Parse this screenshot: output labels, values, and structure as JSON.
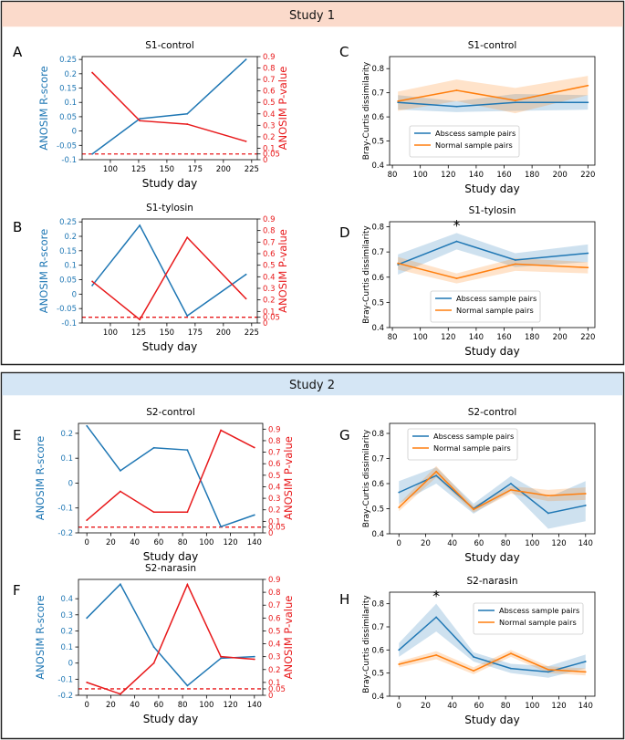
{
  "study1_header": "Study 1",
  "study2_header": "Study 2",
  "colors": {
    "blue": "#1f77b4",
    "orange": "#ff7f0e",
    "red": "#e8191b",
    "header1": "#fbdacb",
    "header2": "#d5e6f5",
    "border": "#222222"
  },
  "chart_data": [
    {
      "id": "A",
      "letter": "A",
      "type": "line",
      "title": "S1-control",
      "xlabel": "Study day",
      "ylabel": "ANOSIM R-score",
      "y2label": "ANOSIM P-value",
      "xlim": [
        75,
        230
      ],
      "xticks": [
        100,
        125,
        150,
        175,
        200,
        225
      ],
      "ylim": [
        -0.1,
        0.26
      ],
      "yticks": [
        -0.1,
        -0.05,
        0,
        0.05,
        0.1,
        0.15,
        0.2,
        0.25
      ],
      "ytick_labels": [
        "-0.1",
        "-0.05",
        "0",
        "0.05",
        "0.1",
        "0.15",
        "0.2",
        "0.25"
      ],
      "y2lim": [
        0,
        0.9
      ],
      "y2ticks": [
        0,
        0.05,
        0.1,
        0.2,
        0.3,
        0.4,
        0.5,
        0.6,
        0.7,
        0.8,
        0.9
      ],
      "y2tick_labels": [
        "0",
        "0.05",
        "0.1",
        "0.2",
        "0.3",
        "0.4",
        "0.5",
        "0.6",
        "0.7",
        "0.8",
        "0.9"
      ],
      "x": [
        84,
        126,
        168,
        220
      ],
      "r_score": [
        -0.08,
        0.043,
        0.06,
        0.25
      ],
      "p_value": [
        0.76,
        0.34,
        0.31,
        0.16
      ],
      "p_threshold": 0.05
    },
    {
      "id": "B",
      "letter": "B",
      "type": "line",
      "title": "S1-tylosin",
      "xlabel": "Study day",
      "ylabel": "ANOSIM R-score",
      "y2label": "ANOSIM P-value",
      "xlim": [
        75,
        230
      ],
      "xticks": [
        100,
        125,
        150,
        175,
        200,
        225
      ],
      "ylim": [
        -0.1,
        0.26
      ],
      "yticks": [
        -0.1,
        -0.05,
        0,
        0.05,
        0.1,
        0.15,
        0.2,
        0.25
      ],
      "ytick_labels": [
        "-0.1",
        "-0.05",
        "0",
        "0.05",
        "0.1",
        "0.15",
        "0.2",
        "0.25"
      ],
      "y2lim": [
        0,
        0.9
      ],
      "y2ticks": [
        0,
        0.05,
        0.1,
        0.2,
        0.3,
        0.4,
        0.5,
        0.6,
        0.7,
        0.8,
        0.9
      ],
      "y2tick_labels": [
        "0",
        "0.05",
        "0.1",
        "0.2",
        "0.3",
        "0.4",
        "0.5",
        "0.6",
        "0.7",
        "0.8",
        "0.9"
      ],
      "x": [
        84,
        126,
        168,
        220
      ],
      "r_score": [
        0.03,
        0.238,
        -0.075,
        0.068
      ],
      "p_value": [
        0.36,
        0.03,
        0.74,
        0.21
      ],
      "p_threshold": 0.05
    },
    {
      "id": "C",
      "letter": "C",
      "type": "line",
      "title": "S1-control",
      "xlabel": "Study day",
      "ylabel": "Bray-Curtis dissimilarity",
      "xlim": [
        78,
        225
      ],
      "xticks": [
        80,
        100,
        120,
        140,
        160,
        180,
        200,
        220
      ],
      "ylim": [
        0.4,
        0.85
      ],
      "yticks": [
        0.4,
        0.5,
        0.6,
        0.7,
        0.8
      ],
      "ytick_labels": [
        "0.4",
        "0.5",
        "0.6",
        "0.7",
        "0.8"
      ],
      "x": [
        84,
        126,
        168,
        220
      ],
      "series": [
        {
          "name": "Abscess sample pairs",
          "values": [
            0.66,
            0.643,
            0.66,
            0.66
          ],
          "lower": [
            0.63,
            0.62,
            0.625,
            0.63
          ],
          "upper": [
            0.69,
            0.665,
            0.695,
            0.69
          ]
        },
        {
          "name": "Normal sample pairs",
          "values": [
            0.665,
            0.71,
            0.668,
            0.73
          ],
          "lower": [
            0.625,
            0.665,
            0.615,
            0.69
          ],
          "upper": [
            0.705,
            0.755,
            0.72,
            0.77
          ]
        }
      ],
      "legend_loc": "lower-left",
      "star_x": null
    },
    {
      "id": "D",
      "letter": "D",
      "type": "line",
      "title": "S1-tylosin",
      "xlabel": "Study day",
      "ylabel": "Bray-Curtis dissimilarity",
      "xlim": [
        78,
        225
      ],
      "xticks": [
        80,
        100,
        120,
        140,
        160,
        180,
        200,
        220
      ],
      "ylim": [
        0.4,
        0.82
      ],
      "yticks": [
        0.4,
        0.5,
        0.6,
        0.7,
        0.8
      ],
      "ytick_labels": [
        "0.4",
        "0.5",
        "0.6",
        "0.7",
        "0.8"
      ],
      "x": [
        84,
        126,
        168,
        220
      ],
      "series": [
        {
          "name": "Abscess sample pairs",
          "values": [
            0.65,
            0.742,
            0.668,
            0.695
          ],
          "lower": [
            0.61,
            0.71,
            0.64,
            0.66
          ],
          "upper": [
            0.69,
            0.775,
            0.695,
            0.73
          ]
        },
        {
          "name": "Normal sample pairs",
          "values": [
            0.655,
            0.595,
            0.652,
            0.638
          ],
          "lower": [
            0.63,
            0.575,
            0.625,
            0.615
          ],
          "upper": [
            0.68,
            0.615,
            0.675,
            0.66
          ]
        }
      ],
      "legend_loc": "lower-right",
      "star_x": 126,
      "star_label": "*"
    },
    {
      "id": "E",
      "letter": "E",
      "type": "line",
      "title": "S2-control",
      "xlabel": "Study day",
      "ylabel": "ANOSIM R-score",
      "y2label": "ANOSIM P-value",
      "xlim": [
        -7,
        147
      ],
      "xticks": [
        0,
        20,
        40,
        60,
        80,
        100,
        120,
        140
      ],
      "ylim": [
        -0.2,
        0.24
      ],
      "yticks": [
        -0.2,
        -0.1,
        0,
        0.1,
        0.2
      ],
      "ytick_labels": [
        "-0.2",
        "-0.1",
        "0",
        "0.1",
        "0.2"
      ],
      "y2lim": [
        0,
        0.95
      ],
      "y2ticks": [
        0,
        0.05,
        0.1,
        0.2,
        0.3,
        0.4,
        0.5,
        0.6,
        0.7,
        0.8,
        0.9
      ],
      "y2tick_labels": [
        "0",
        "0.05",
        "0.1",
        "0.2",
        "0.3",
        "0.4",
        "0.5",
        "0.6",
        "0.7",
        "0.8",
        "0.9"
      ],
      "x": [
        0,
        28,
        56,
        84,
        112,
        140
      ],
      "r_score": [
        0.23,
        0.05,
        0.142,
        0.133,
        -0.175,
        -0.128
      ],
      "p_value": [
        0.11,
        0.36,
        0.18,
        0.18,
        0.89,
        0.74
      ],
      "p_threshold": 0.05
    },
    {
      "id": "F",
      "letter": "F",
      "type": "line",
      "title": "S2-narasin",
      "xlabel": "Study day",
      "ylabel": "ANOSIM R-score",
      "y2label": "ANOSIM P-value",
      "xlim": [
        -7,
        147
      ],
      "xticks": [
        0,
        20,
        40,
        60,
        80,
        100,
        120,
        140
      ],
      "ylim": [
        -0.2,
        0.52
      ],
      "yticks": [
        -0.2,
        -0.1,
        0,
        0.1,
        0.2,
        0.3,
        0.4
      ],
      "ytick_labels": [
        "-0.2",
        "-0.1",
        "0",
        "0.1",
        "0.2",
        "0.3",
        "0.4"
      ],
      "y2lim": [
        0,
        0.9
      ],
      "y2ticks": [
        0,
        0.05,
        0.1,
        0.2,
        0.3,
        0.4,
        0.5,
        0.6,
        0.7,
        0.8,
        0.9
      ],
      "y2tick_labels": [
        "0",
        "0.05",
        "0.1",
        "0.2",
        "0.3",
        "0.4",
        "0.5",
        "0.6",
        "0.7",
        "0.8",
        "0.9"
      ],
      "x": [
        0,
        28,
        56,
        84,
        112,
        140
      ],
      "r_score": [
        0.28,
        0.49,
        0.1,
        -0.14,
        0.03,
        0.04
      ],
      "p_value": [
        0.1,
        0.01,
        0.25,
        0.86,
        0.3,
        0.28
      ],
      "p_threshold": 0.05
    },
    {
      "id": "G",
      "letter": "G",
      "type": "line",
      "title": "S2-control",
      "xlabel": "Study day",
      "ylabel": "Bray-Curtis dissimilarity",
      "xlim": [
        -7,
        147
      ],
      "xticks": [
        0,
        20,
        40,
        60,
        80,
        100,
        120,
        140
      ],
      "ylim": [
        0.4,
        0.84
      ],
      "yticks": [
        0.4,
        0.5,
        0.6,
        0.7,
        0.8
      ],
      "ytick_labels": [
        "0.4",
        "0.5",
        "0.6",
        "0.7",
        "0.8"
      ],
      "x": [
        0,
        28,
        56,
        84,
        112,
        140
      ],
      "series": [
        {
          "name": "Abscess sample pairs",
          "values": [
            0.565,
            0.632,
            0.5,
            0.6,
            0.482,
            0.513
          ],
          "lower": [
            0.52,
            0.6,
            0.48,
            0.57,
            0.42,
            0.45
          ],
          "upper": [
            0.61,
            0.665,
            0.52,
            0.63,
            0.545,
            0.61
          ]
        },
        {
          "name": "Normal sample pairs",
          "values": [
            0.505,
            0.648,
            0.497,
            0.575,
            0.552,
            0.56
          ],
          "lower": [
            0.49,
            0.625,
            0.485,
            0.56,
            0.53,
            0.535
          ],
          "upper": [
            0.52,
            0.67,
            0.51,
            0.59,
            0.575,
            0.585
          ]
        }
      ],
      "legend_loc": "top-left",
      "star_x": null
    },
    {
      "id": "H",
      "letter": "H",
      "type": "line",
      "title": "S2-narasin",
      "xlabel": "Study day",
      "ylabel": "Bray-Curtis dissimilarity",
      "xlim": [
        -7,
        147
      ],
      "xticks": [
        0,
        20,
        40,
        60,
        80,
        100,
        120,
        140
      ],
      "ylim": [
        0.4,
        0.85
      ],
      "yticks": [
        0.4,
        0.5,
        0.6,
        0.7,
        0.8
      ],
      "ytick_labels": [
        "0.4",
        "0.5",
        "0.6",
        "0.7",
        "0.8"
      ],
      "x": [
        0,
        28,
        56,
        84,
        112,
        140
      ],
      "series": [
        {
          "name": "Abscess sample pairs",
          "values": [
            0.6,
            0.742,
            0.57,
            0.52,
            0.505,
            0.55
          ],
          "lower": [
            0.57,
            0.68,
            0.55,
            0.5,
            0.48,
            0.52
          ],
          "upper": [
            0.63,
            0.8,
            0.59,
            0.54,
            0.53,
            0.58
          ]
        },
        {
          "name": "Normal sample pairs",
          "values": [
            0.538,
            0.578,
            0.51,
            0.585,
            0.515,
            0.505
          ],
          "lower": [
            0.525,
            0.56,
            0.495,
            0.57,
            0.5,
            0.49
          ],
          "upper": [
            0.55,
            0.595,
            0.525,
            0.6,
            0.53,
            0.52
          ]
        }
      ],
      "legend_loc": "top-right",
      "star_x": 28,
      "star_label": "*"
    }
  ]
}
